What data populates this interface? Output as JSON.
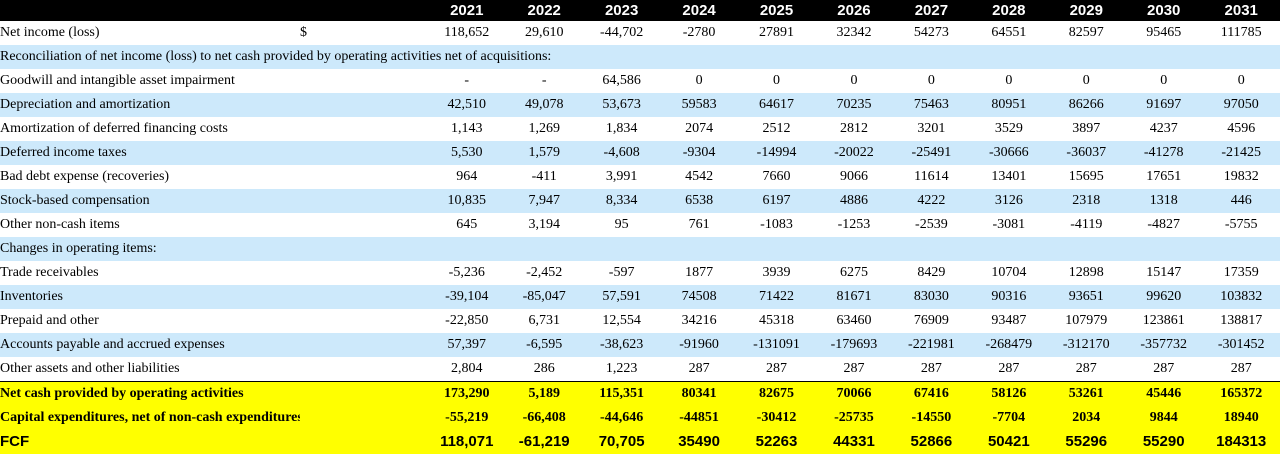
{
  "years": [
    "2021",
    "2022",
    "2023",
    "2024",
    "2025",
    "2026",
    "2027",
    "2028",
    "2029",
    "2030",
    "2031"
  ],
  "rows": [
    {
      "label": "Net income (loss)",
      "currency": "$",
      "values": [
        "118,652",
        "29,610",
        "-44,702",
        "-2780",
        "27891",
        "32342",
        "54273",
        "64551",
        "82597",
        "95465",
        "111785"
      ]
    },
    {
      "label": "Reconciliation of net income (loss) to net cash provided by operating activities net of acquisitions:"
    },
    {
      "label": "Goodwill and intangible asset impairment",
      "values": [
        "-",
        "-",
        "64,586",
        "0",
        "0",
        "0",
        "0",
        "0",
        "0",
        "0",
        "0"
      ]
    },
    {
      "label": "Depreciation and amortization",
      "values": [
        "42,510",
        "49,078",
        "53,673",
        "59583",
        "64617",
        "70235",
        "75463",
        "80951",
        "86266",
        "91697",
        "97050"
      ]
    },
    {
      "label": "Amortization of deferred financing costs",
      "values": [
        "1,143",
        "1,269",
        "1,834",
        "2074",
        "2512",
        "2812",
        "3201",
        "3529",
        "3897",
        "4237",
        "4596"
      ]
    },
    {
      "label": "Deferred income taxes",
      "values": [
        "5,530",
        "1,579",
        "-4,608",
        "-9304",
        "-14994",
        "-20022",
        "-25491",
        "-30666",
        "-36037",
        "-41278",
        "-21425"
      ]
    },
    {
      "label": "Bad debt expense (recoveries)",
      "values": [
        "964",
        "-411",
        "3,991",
        "4542",
        "7660",
        "9066",
        "11614",
        "13401",
        "15695",
        "17651",
        "19832"
      ]
    },
    {
      "label": "Stock-based compensation",
      "values": [
        "10,835",
        "7,947",
        "8,334",
        "6538",
        "6197",
        "4886",
        "4222",
        "3126",
        "2318",
        "1318",
        "446"
      ]
    },
    {
      "label": "Other non-cash items",
      "values": [
        "645",
        "3,194",
        "95",
        "761",
        "-1083",
        "-1253",
        "-2539",
        "-3081",
        "-4119",
        "-4827",
        "-5755"
      ]
    },
    {
      "label": "Changes in operating items:"
    },
    {
      "label": "Trade receivables",
      "values": [
        "-5,236",
        "-2,452",
        "-597",
        "1877",
        "3939",
        "6275",
        "8429",
        "10704",
        "12898",
        "15147",
        "17359"
      ]
    },
    {
      "label": "Inventories",
      "values": [
        "-39,104",
        "-85,047",
        "57,591",
        "74508",
        "71422",
        "81671",
        "83030",
        "90316",
        "93651",
        "99620",
        "103832"
      ]
    },
    {
      "label": "Prepaid and other",
      "values": [
        "-22,850",
        "6,731",
        "12,554",
        "34216",
        "45318",
        "63460",
        "76909",
        "93487",
        "107979",
        "123861",
        "138817"
      ]
    },
    {
      "label": "Accounts payable and accrued expenses",
      "values": [
        "57,397",
        "-6,595",
        "-38,623",
        "-91960",
        "-131091",
        "-179693",
        "-221981",
        "-268479",
        "-312170",
        "-357732",
        "-301452"
      ]
    },
    {
      "label": "Other assets and other liabilities",
      "values": [
        "2,804",
        "286",
        "1,223",
        "287",
        "287",
        "287",
        "287",
        "287",
        "287",
        "287",
        "287"
      ]
    },
    {
      "label": "Net cash provided by operating activities",
      "values": [
        "173,290",
        "5,189",
        "115,351",
        "80341",
        "82675",
        "70066",
        "67416",
        "58126",
        "53261",
        "45446",
        "165372"
      ]
    },
    {
      "label": "Capital expenditures, net of non-cash expenditures",
      "values": [
        "-55,219",
        "-66,408",
        "-44,646",
        "-44851",
        "-30412",
        "-25735",
        "-14550",
        "-7704",
        "2034",
        "9844",
        "18940"
      ]
    },
    {
      "label": "FCF",
      "values": [
        "118,071",
        "-61,219",
        "70,705",
        "35490",
        "52263",
        "44331",
        "52866",
        "50421",
        "55296",
        "55290",
        "184313"
      ]
    }
  ],
  "colors": {
    "header_bg": "#000000",
    "header_text": "#ffffff",
    "band_blue": "#cde9fb",
    "total_yellow": "#ffff00"
  }
}
